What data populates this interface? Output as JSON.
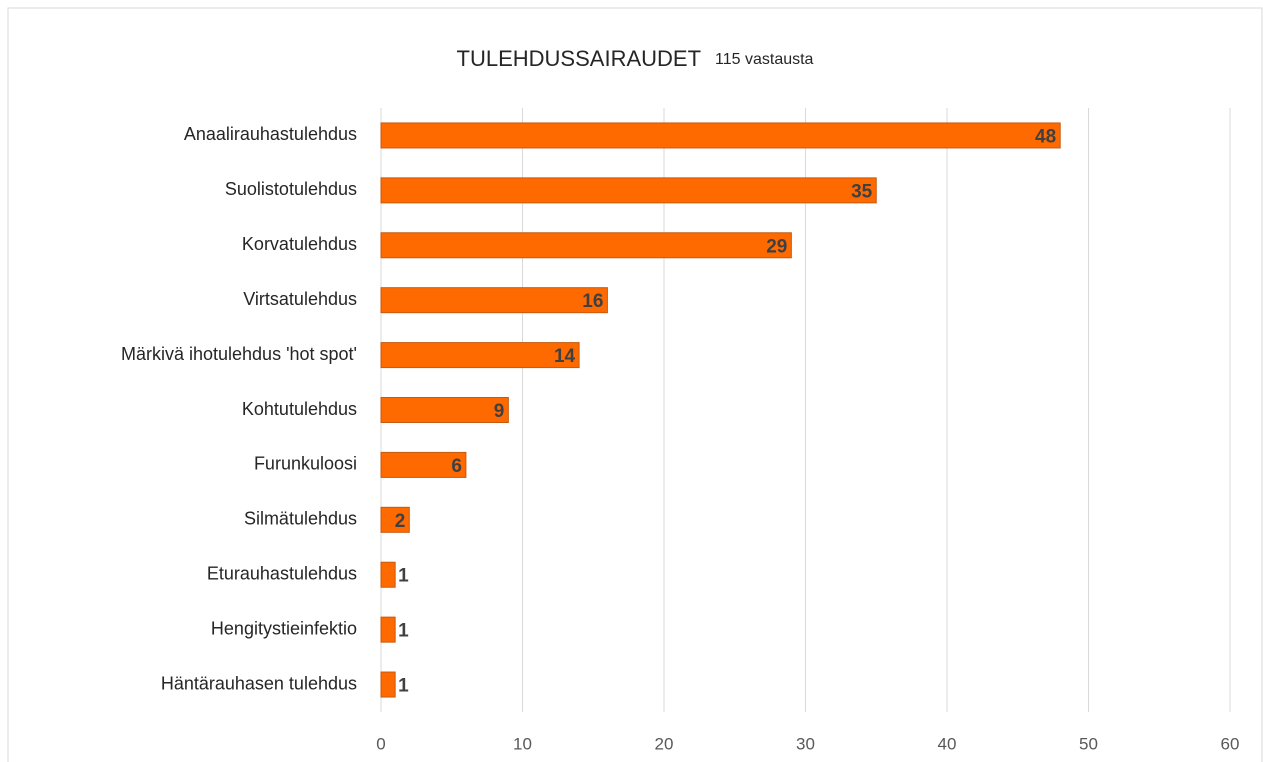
{
  "chart_data": {
    "type": "bar",
    "orientation": "horizontal",
    "title": "TULEHDUSSAIRAUDET",
    "subtitle": "115 vastausta",
    "categories": [
      "Anaalirauhastulehdus",
      "Suolistotulehdus",
      "Korvatulehdus",
      "Virtsatulehdus",
      "Märkivä ihotulehdus 'hot spot'",
      "Kohtutulehdus",
      "Furunkuloosi ",
      "Silmätulehdus",
      "Eturauhastulehdus",
      "Hengitystieinfektio",
      "Häntärauhasen tulehdus"
    ],
    "values": [
      48,
      35,
      29,
      16,
      14,
      9,
      6,
      2,
      1,
      1,
      1
    ],
    "color": "#ff6a00",
    "xlim": [
      0,
      60
    ],
    "xticks": [
      0,
      10,
      20,
      30,
      40,
      50,
      60
    ],
    "grid": true
  }
}
